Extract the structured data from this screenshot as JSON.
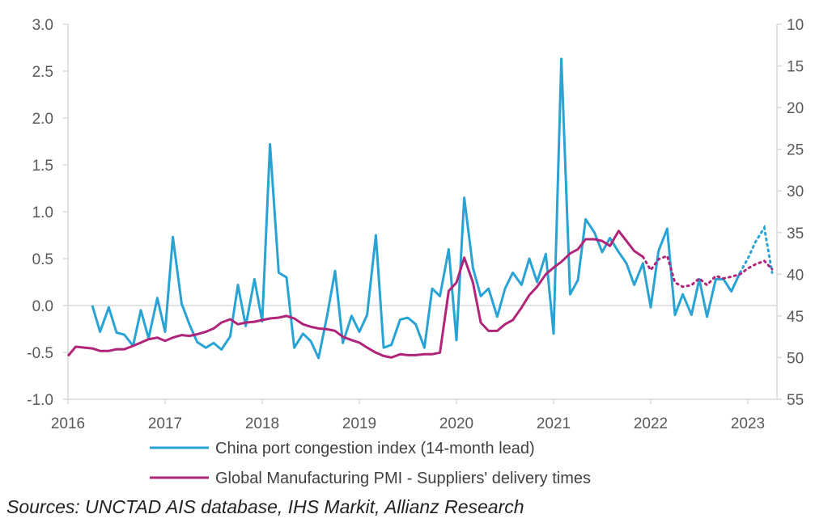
{
  "chart_data": {
    "type": "line",
    "y_left": {
      "range": [
        -1.0,
        3.0
      ],
      "ticks": [
        "-1.0",
        "-0.5",
        "0.0",
        "0.5",
        "1.0",
        "1.5",
        "2.0",
        "2.5",
        "3.0"
      ]
    },
    "y_right": {
      "range": [
        55,
        10
      ],
      "inverted": true,
      "ticks": [
        "10",
        "15",
        "20",
        "25",
        "30",
        "35",
        "40",
        "45",
        "50",
        "55"
      ]
    },
    "x_ticks": [
      "2016",
      "2017",
      "2018",
      "2019",
      "2020",
      "2021",
      "2022",
      "2023"
    ],
    "x_range": [
      2016.0,
      2023.3
    ],
    "grid": false,
    "legend_position": "bottom",
    "series": [
      {
        "name": "China port congestion index (14-month lead)",
        "axis": "left",
        "color": "#29a3d4",
        "dotted_from": 2022.92,
        "points": [
          [
            2016.25,
            0.0
          ],
          [
            2016.33,
            -0.28
          ],
          [
            2016.42,
            -0.02
          ],
          [
            2016.5,
            -0.29
          ],
          [
            2016.58,
            -0.31
          ],
          [
            2016.67,
            -0.43
          ],
          [
            2016.75,
            -0.05
          ],
          [
            2016.83,
            -0.35
          ],
          [
            2016.92,
            0.08
          ],
          [
            2017.0,
            -0.28
          ],
          [
            2017.08,
            0.73
          ],
          [
            2017.17,
            0.02
          ],
          [
            2017.25,
            -0.2
          ],
          [
            2017.33,
            -0.39
          ],
          [
            2017.42,
            -0.45
          ],
          [
            2017.5,
            -0.4
          ],
          [
            2017.58,
            -0.47
          ],
          [
            2017.67,
            -0.33
          ],
          [
            2017.75,
            0.22
          ],
          [
            2017.83,
            -0.22
          ],
          [
            2017.92,
            0.28
          ],
          [
            2018.0,
            -0.17
          ],
          [
            2018.08,
            1.72
          ],
          [
            2018.17,
            0.35
          ],
          [
            2018.25,
            0.3
          ],
          [
            2018.33,
            -0.45
          ],
          [
            2018.42,
            -0.3
          ],
          [
            2018.5,
            -0.38
          ],
          [
            2018.58,
            -0.56
          ],
          [
            2018.67,
            -0.1
          ],
          [
            2018.75,
            0.37
          ],
          [
            2018.83,
            -0.4
          ],
          [
            2018.92,
            -0.11
          ],
          [
            2019.0,
            -0.28
          ],
          [
            2019.08,
            -0.1
          ],
          [
            2019.17,
            0.75
          ],
          [
            2019.25,
            -0.45
          ],
          [
            2019.33,
            -0.42
          ],
          [
            2019.42,
            -0.15
          ],
          [
            2019.5,
            -0.13
          ],
          [
            2019.58,
            -0.2
          ],
          [
            2019.67,
            -0.45
          ],
          [
            2019.75,
            0.18
          ],
          [
            2019.83,
            0.1
          ],
          [
            2019.92,
            0.6
          ],
          [
            2020.0,
            -0.37
          ],
          [
            2020.08,
            1.15
          ],
          [
            2020.17,
            0.4
          ],
          [
            2020.25,
            0.1
          ],
          [
            2020.33,
            0.18
          ],
          [
            2020.42,
            -0.12
          ],
          [
            2020.5,
            0.18
          ],
          [
            2020.58,
            0.35
          ],
          [
            2020.67,
            0.22
          ],
          [
            2020.75,
            0.5
          ],
          [
            2020.83,
            0.25
          ],
          [
            2020.92,
            0.55
          ],
          [
            2021.0,
            -0.3
          ],
          [
            2021.08,
            2.63
          ],
          [
            2021.17,
            0.12
          ],
          [
            2021.25,
            0.27
          ],
          [
            2021.33,
            0.92
          ],
          [
            2021.42,
            0.78
          ],
          [
            2021.5,
            0.57
          ],
          [
            2021.58,
            0.72
          ],
          [
            2021.67,
            0.57
          ],
          [
            2021.75,
            0.45
          ],
          [
            2021.83,
            0.22
          ],
          [
            2021.92,
            0.45
          ],
          [
            2022.0,
            -0.02
          ],
          [
            2022.08,
            0.58
          ],
          [
            2022.17,
            0.82
          ],
          [
            2022.25,
            -0.1
          ],
          [
            2022.33,
            0.12
          ],
          [
            2022.42,
            -0.1
          ],
          [
            2022.5,
            0.28
          ],
          [
            2022.58,
            -0.12
          ],
          [
            2022.67,
            0.28
          ],
          [
            2022.75,
            0.28
          ],
          [
            2022.83,
            0.15
          ],
          [
            2022.92,
            0.35
          ],
          [
            2023.0,
            0.5
          ],
          [
            2023.08,
            0.68
          ],
          [
            2023.17,
            0.83
          ],
          [
            2023.25,
            0.35
          ]
        ]
      },
      {
        "name": "Global Manufacturing PMI - Suppliers' delivery times",
        "axis": "right",
        "color": "#b0247a",
        "dotted_from": 2021.92,
        "points": [
          [
            2016.0,
            49.8
          ],
          [
            2016.08,
            48.7
          ],
          [
            2016.17,
            48.8
          ],
          [
            2016.25,
            48.9
          ],
          [
            2016.33,
            49.2
          ],
          [
            2016.42,
            49.2
          ],
          [
            2016.5,
            49.0
          ],
          [
            2016.58,
            49.0
          ],
          [
            2016.67,
            48.6
          ],
          [
            2016.75,
            48.2
          ],
          [
            2016.83,
            47.8
          ],
          [
            2016.92,
            47.6
          ],
          [
            2017.0,
            48.0
          ],
          [
            2017.08,
            47.6
          ],
          [
            2017.17,
            47.3
          ],
          [
            2017.25,
            47.4
          ],
          [
            2017.33,
            47.2
          ],
          [
            2017.42,
            46.9
          ],
          [
            2017.5,
            46.5
          ],
          [
            2017.58,
            45.8
          ],
          [
            2017.67,
            45.4
          ],
          [
            2017.75,
            46.0
          ],
          [
            2017.83,
            45.8
          ],
          [
            2017.92,
            45.7
          ],
          [
            2018.0,
            45.5
          ],
          [
            2018.08,
            45.3
          ],
          [
            2018.17,
            45.2
          ],
          [
            2018.25,
            45.0
          ],
          [
            2018.33,
            45.3
          ],
          [
            2018.42,
            46.0
          ],
          [
            2018.5,
            46.3
          ],
          [
            2018.58,
            46.5
          ],
          [
            2018.67,
            46.6
          ],
          [
            2018.75,
            46.8
          ],
          [
            2018.83,
            47.5
          ],
          [
            2018.92,
            47.9
          ],
          [
            2019.0,
            48.2
          ],
          [
            2019.08,
            48.8
          ],
          [
            2019.17,
            49.4
          ],
          [
            2019.25,
            49.8
          ],
          [
            2019.33,
            50.0
          ],
          [
            2019.42,
            49.6
          ],
          [
            2019.5,
            49.7
          ],
          [
            2019.58,
            49.7
          ],
          [
            2019.67,
            49.6
          ],
          [
            2019.75,
            49.6
          ],
          [
            2019.83,
            49.4
          ],
          [
            2019.92,
            42.0
          ],
          [
            2020.0,
            41.0
          ],
          [
            2020.08,
            38.0
          ],
          [
            2020.17,
            41.0
          ],
          [
            2020.25,
            45.8
          ],
          [
            2020.33,
            46.8
          ],
          [
            2020.42,
            46.8
          ],
          [
            2020.5,
            46.0
          ],
          [
            2020.58,
            45.5
          ],
          [
            2020.67,
            44.0
          ],
          [
            2020.75,
            42.5
          ],
          [
            2020.83,
            41.5
          ],
          [
            2020.92,
            40.0
          ],
          [
            2021.0,
            39.2
          ],
          [
            2021.08,
            38.5
          ],
          [
            2021.17,
            37.5
          ],
          [
            2021.25,
            37.0
          ],
          [
            2021.33,
            35.8
          ],
          [
            2021.42,
            35.8
          ],
          [
            2021.5,
            36.0
          ],
          [
            2021.58,
            36.6
          ],
          [
            2021.67,
            34.8
          ],
          [
            2021.75,
            36.0
          ],
          [
            2021.83,
            37.2
          ],
          [
            2021.92,
            37.9
          ],
          [
            2022.0,
            39.5
          ],
          [
            2022.08,
            38.2
          ],
          [
            2022.17,
            37.8
          ],
          [
            2022.25,
            41.0
          ],
          [
            2022.33,
            41.5
          ],
          [
            2022.42,
            41.3
          ],
          [
            2022.5,
            40.5
          ],
          [
            2022.58,
            41.3
          ],
          [
            2022.67,
            40.2
          ],
          [
            2022.75,
            40.5
          ],
          [
            2022.83,
            40.3
          ],
          [
            2022.92,
            40.0
          ],
          [
            2023.0,
            39.3
          ],
          [
            2023.08,
            38.8
          ],
          [
            2023.17,
            38.4
          ],
          [
            2023.25,
            39.4
          ]
        ]
      }
    ]
  },
  "legend": {
    "items": [
      {
        "label": "China port congestion index (14-month lead)",
        "color": "#29a3d4"
      },
      {
        "label": "Global Manufacturing PMI - Suppliers' delivery times",
        "color": "#b0247a"
      }
    ]
  },
  "source": "Sources: UNCTAD AIS database, IHS Markit, Allianz Research"
}
